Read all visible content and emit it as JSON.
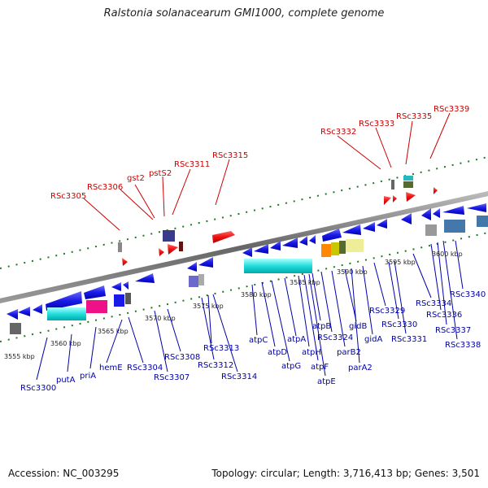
{
  "title": "Ralstonia solanacearum GMI1000, complete genome",
  "footer": {
    "accession": "Accession: NC_003295",
    "topology": "Topology: circular; Length: 3,716,413 bp; Genes: 3,501"
  },
  "scale_labels": [
    "3555 kbp",
    "3560 kbp",
    "3565 kbp",
    "3570 kbp",
    "3575 kbp",
    "3580 kbp",
    "3585 kbp",
    "3590 kbp",
    "3595 kbp",
    "3600 kbp"
  ],
  "colors": {
    "top_labels": "#cc0000",
    "bottom_labels": "#0000aa",
    "backbone": "#777777",
    "ticks": "#227722"
  },
  "top_labels": [
    "RSc3305",
    "RSc3306",
    "gst2",
    "pstS2",
    "RSc3311",
    "RSc3315",
    "RSc3332",
    "RSc3333",
    "RSc3335",
    "RSc3339"
  ],
  "bottom_labels": [
    "RSc3300",
    "putA",
    "priA",
    "hemE",
    "RSc3304",
    "RSc3307",
    "RSc3308",
    "RSc3312",
    "RSc3313",
    "RSc3314",
    "atpC",
    "atpD",
    "atpG",
    "atpA",
    "atpH",
    "atpF",
    "atpE",
    "atpB",
    "RSc3324",
    "parB2",
    "gidB",
    "parA2",
    "gidA",
    "RSc3329",
    "RSc3330",
    "RSc3331",
    "RSc3334",
    "RSc3336",
    "RSc3337",
    "RSc3338",
    "RSc3340"
  ]
}
